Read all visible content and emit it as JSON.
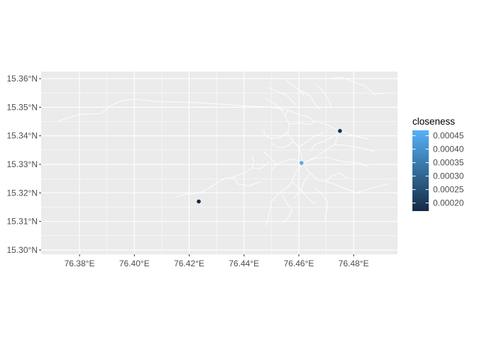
{
  "chart_data": {
    "type": "scatter",
    "background_color": "#EBEBEB",
    "grid": true,
    "grid_color": "#FFFFFF",
    "road_color": "#FFFFFF",
    "x_ticks": [
      {
        "value": 76.38,
        "label": "76.38°E"
      },
      {
        "value": 76.4,
        "label": "76.40°E"
      },
      {
        "value": 76.42,
        "label": "76.42°E"
      },
      {
        "value": 76.44,
        "label": "76.44°E"
      },
      {
        "value": 76.46,
        "label": "76.46°E"
      },
      {
        "value": 76.48,
        "label": "76.48°E"
      }
    ],
    "y_ticks": [
      {
        "value": 15.3,
        "label": "15.30°N"
      },
      {
        "value": 15.31,
        "label": "15.31°N"
      },
      {
        "value": 15.32,
        "label": "15.32°N"
      },
      {
        "value": 15.33,
        "label": "15.33°N"
      },
      {
        "value": 15.34,
        "label": "15.34°N"
      },
      {
        "value": 15.35,
        "label": "15.35°N"
      },
      {
        "value": 15.36,
        "label": "15.36°N"
      }
    ],
    "xlim": [
      76.366,
      76.496
    ],
    "ylim": [
      15.2985,
      15.3625
    ],
    "points": [
      {
        "x": 76.4235,
        "y": 15.317,
        "closeness": 0.00017
      },
      {
        "x": 76.461,
        "y": 15.3305,
        "closeness": 0.00046
      },
      {
        "x": 76.475,
        "y": 15.3417,
        "closeness": 0.000185
      }
    ],
    "color_scale": {
      "low_color": "#132B43",
      "high_color": "#56B1F7",
      "min": 0.00017,
      "max": 0.00047
    },
    "legend": {
      "title": "closeness",
      "position": "right",
      "breaks": [
        {
          "value": 0.0002,
          "label": "0.00020"
        },
        {
          "value": 0.00025,
          "label": "0.00025"
        },
        {
          "value": 0.0003,
          "label": "0.00030"
        },
        {
          "value": 0.00035,
          "label": "0.00035"
        },
        {
          "value": 0.0004,
          "label": "0.00040"
        },
        {
          "value": 0.00045,
          "label": "0.00045"
        }
      ]
    },
    "roads": [
      [
        [
          76.3725,
          15.3452
        ],
        [
          76.38,
          15.3475
        ],
        [
          76.388,
          15.3478
        ],
        [
          76.3905,
          15.3502
        ],
        [
          76.395,
          15.3522
        ],
        [
          76.4,
          15.3528
        ],
        [
          76.408,
          15.352
        ],
        [
          76.42,
          15.3517
        ],
        [
          76.43,
          15.3512
        ],
        [
          76.44,
          15.3505
        ],
        [
          76.45,
          15.35
        ],
        [
          76.456,
          15.349
        ],
        [
          76.46,
          15.3475
        ]
      ],
      [
        [
          76.46,
          15.3475
        ],
        [
          76.463,
          15.3468
        ],
        [
          76.466,
          15.345
        ],
        [
          76.47,
          15.344
        ],
        [
          76.472,
          15.343
        ],
        [
          76.475,
          15.3417
        ],
        [
          76.48,
          15.34
        ],
        [
          76.4855,
          15.3388
        ]
      ],
      [
        [
          76.449,
          15.357
        ],
        [
          76.452,
          15.3555
        ],
        [
          76.455,
          15.3545
        ],
        [
          76.457,
          15.3528
        ],
        [
          76.459,
          15.3508
        ]
      ],
      [
        [
          76.455,
          15.3598
        ],
        [
          76.458,
          15.3575
        ],
        [
          76.46,
          15.356
        ],
        [
          76.462,
          15.354
        ]
      ],
      [
        [
          76.4665,
          15.3578
        ],
        [
          76.469,
          15.3555
        ],
        [
          76.4705,
          15.353
        ],
        [
          76.472,
          15.35
        ]
      ],
      [
        [
          76.4712,
          15.36
        ],
        [
          76.476,
          15.3605
        ],
        [
          76.48,
          15.3588
        ],
        [
          76.484,
          15.3575
        ],
        [
          76.4875,
          15.3545
        ],
        [
          76.4915,
          15.355
        ]
      ],
      [
        [
          76.456,
          15.349
        ],
        [
          76.455,
          15.347
        ],
        [
          76.4565,
          15.344
        ],
        [
          76.456,
          15.341
        ],
        [
          76.458,
          15.338
        ],
        [
          76.46,
          15.336
        ],
        [
          76.461,
          15.333
        ],
        [
          76.4615,
          15.3305
        ]
      ],
      [
        [
          76.4615,
          15.3305
        ],
        [
          76.459,
          15.3275
        ],
        [
          76.4575,
          15.324
        ],
        [
          76.456,
          15.322
        ],
        [
          76.453,
          15.32
        ],
        [
          76.45,
          15.317
        ],
        [
          76.449,
          15.312
        ],
        [
          76.448,
          15.3085
        ]
      ],
      [
        [
          76.4615,
          15.3305
        ],
        [
          76.465,
          15.332
        ],
        [
          76.47,
          15.335
        ],
        [
          76.473,
          15.337
        ],
        [
          76.475,
          15.3417
        ]
      ],
      [
        [
          76.474,
          15.3408
        ],
        [
          76.472,
          15.3395
        ],
        [
          76.469,
          15.338
        ],
        [
          76.466,
          15.337
        ],
        [
          76.464,
          15.3345
        ]
      ],
      [
        [
          76.4615,
          15.3305
        ],
        [
          76.464,
          15.327
        ],
        [
          76.467,
          15.3245
        ],
        [
          76.47,
          15.324
        ],
        [
          76.473,
          15.323
        ],
        [
          76.477,
          15.3215
        ],
        [
          76.481,
          15.32
        ]
      ],
      [
        [
          76.481,
          15.32
        ],
        [
          76.486,
          15.3215
        ],
        [
          76.49,
          15.3225
        ],
        [
          76.4925,
          15.3232
        ]
      ],
      [
        [
          76.4615,
          15.3305
        ],
        [
          76.4655,
          15.332
        ],
        [
          76.47,
          15.3325
        ],
        [
          76.476,
          15.331
        ],
        [
          76.482,
          15.3305
        ],
        [
          76.4855,
          15.329
        ]
      ],
      [
        [
          76.4615,
          15.3305
        ],
        [
          76.458,
          15.332
        ],
        [
          76.455,
          15.3312
        ],
        [
          76.452,
          15.33
        ],
        [
          76.45,
          15.328
        ]
      ],
      [
        [
          76.449,
          15.3305
        ],
        [
          76.446,
          15.3285
        ],
        [
          76.443,
          15.3288
        ],
        [
          76.44,
          15.327
        ],
        [
          76.436,
          15.3255
        ],
        [
          76.433,
          15.325
        ],
        [
          76.43,
          15.3235
        ],
        [
          76.427,
          15.3215
        ],
        [
          76.4238,
          15.32
        ]
      ],
      [
        [
          76.415,
          15.3185
        ],
        [
          76.419,
          15.3195
        ],
        [
          76.4238,
          15.32
        ]
      ],
      [
        [
          76.454,
          15.319
        ],
        [
          76.456,
          15.316
        ],
        [
          76.4575,
          15.314
        ],
        [
          76.456,
          15.311
        ],
        [
          76.454,
          15.3095
        ]
      ],
      [
        [
          76.4575,
          15.324
        ],
        [
          76.461,
          15.321
        ],
        [
          76.463,
          15.3185
        ],
        [
          76.466,
          15.316
        ]
      ],
      [
        [
          76.466,
          15.3215
        ],
        [
          76.469,
          15.319
        ],
        [
          76.4705,
          15.3165
        ],
        [
          76.47,
          15.313
        ],
        [
          76.4695,
          15.31
        ]
      ],
      [
        [
          76.456,
          15.341
        ],
        [
          76.453,
          15.3395
        ],
        [
          76.45,
          15.339
        ],
        [
          76.448,
          15.34
        ],
        [
          76.447,
          15.342
        ]
      ],
      [
        [
          76.458,
          15.338
        ],
        [
          76.455,
          15.336
        ],
        [
          76.452,
          15.336
        ],
        [
          76.45,
          15.3375
        ]
      ],
      [
        [
          76.46,
          15.336
        ],
        [
          76.463,
          15.338
        ],
        [
          76.466,
          15.34
        ],
        [
          76.469,
          15.341
        ]
      ],
      [
        [
          76.4565,
          15.344
        ],
        [
          76.46,
          15.3445
        ],
        [
          76.464,
          15.344
        ],
        [
          76.466,
          15.345
        ]
      ],
      [
        [
          76.448,
          15.353
        ],
        [
          76.45,
          15.352
        ],
        [
          76.453,
          15.35
        ],
        [
          76.455,
          15.347
        ]
      ],
      [
        [
          76.4605,
          15.356
        ],
        [
          76.464,
          15.354
        ],
        [
          76.466,
          15.351
        ],
        [
          76.468,
          15.349
        ]
      ],
      [
        [
          76.473,
          15.337
        ],
        [
          76.478,
          15.3365
        ],
        [
          76.484,
          15.3355
        ],
        [
          76.4875,
          15.3345
        ]
      ],
      [
        [
          76.464,
          15.327
        ],
        [
          76.462,
          15.324
        ],
        [
          76.4605,
          15.3205
        ],
        [
          76.458,
          15.318
        ]
      ],
      [
        [
          76.436,
          15.3255
        ],
        [
          76.438,
          15.323
        ],
        [
          76.442,
          15.3225
        ],
        [
          76.446,
          15.324
        ]
      ],
      [
        [
          76.443,
          15.3288
        ],
        [
          76.4435,
          15.331
        ],
        [
          76.443,
          15.333
        ]
      ],
      [
        [
          76.452,
          15.33
        ],
        [
          76.4495,
          15.3325
        ],
        [
          76.447,
          15.3345
        ]
      ],
      [
        [
          76.47,
          15.324
        ],
        [
          76.472,
          15.326
        ],
        [
          76.475,
          15.327
        ],
        [
          76.478,
          15.325
        ]
      ]
    ]
  }
}
